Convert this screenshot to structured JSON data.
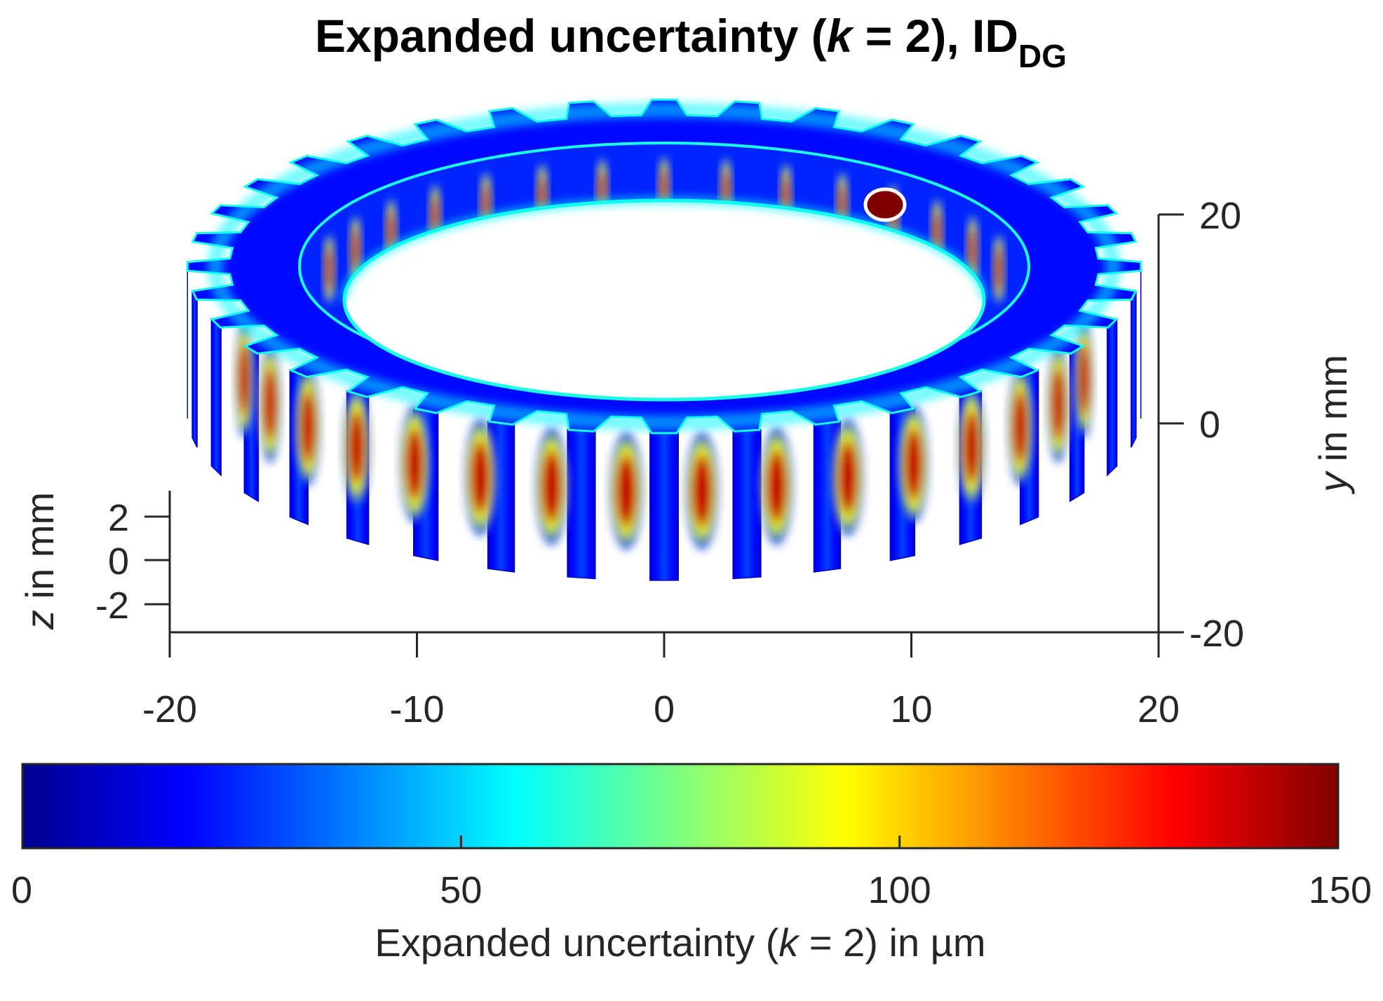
{
  "chart_data": {
    "type": "surface-3d",
    "title": {
      "main": "Expanded uncertainty (",
      "k_symbol": "k",
      "main_after_k": " = 2), ID",
      "subscript": "DG"
    },
    "object": "spur gear (external teeth), viewed in 3D",
    "tooth_count": 36,
    "x_axis": {
      "range": [
        -20,
        20
      ],
      "ticks": [
        -20,
        -10,
        0,
        10,
        20
      ],
      "tick_labels": [
        "-20",
        "-10",
        "0",
        "10",
        "20"
      ]
    },
    "y_axis": {
      "range": [
        -20,
        20
      ],
      "ticks": [
        -20,
        0,
        20
      ],
      "tick_labels": [
        "-20",
        "0",
        "20"
      ],
      "label_var": "y",
      "label_unit": " in mm"
    },
    "z_axis": {
      "range": [
        -3,
        3
      ],
      "ticks": [
        -2,
        0,
        2
      ],
      "tick_labels": [
        "-2",
        "0",
        "2"
      ],
      "label_var": "z",
      "label_unit": " in mm"
    },
    "colormap": "jet",
    "color_stops": [
      "#00008f",
      "#0000ff",
      "#00ffff",
      "#ffff00",
      "#ff0000",
      "#800000"
    ],
    "colorbar": {
      "range": [
        0,
        150
      ],
      "ticks": [
        0,
        50,
        100,
        150
      ],
      "tick_labels": [
        "0",
        "50",
        "100",
        "150"
      ],
      "label_pre": "Expanded uncertainty (",
      "label_k": "k",
      "label_post": " = 2) in µm"
    },
    "values_um": {
      "surface_typical": 20,
      "top_face_near_tips": 55,
      "inner_bore_rim": 60,
      "tooth_gap_centre_peak": 140,
      "defect_spot": 150
    }
  }
}
